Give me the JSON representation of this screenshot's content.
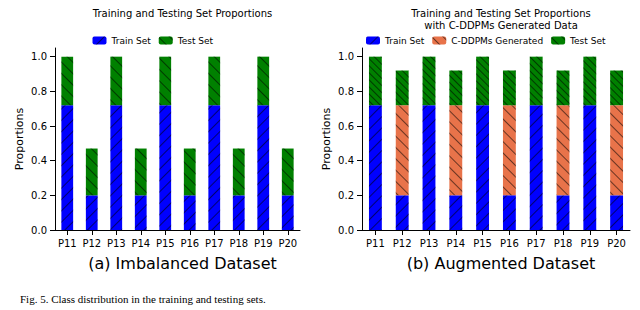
{
  "caption": "Fig. 5. Class distribution in the training and testing sets.",
  "chart_data": [
    {
      "type": "bar",
      "stacked": true,
      "grid": false,
      "legend": "top",
      "title": "Training and Testing Set Proportions",
      "subtitle": "(a) Imbalanced Dataset",
      "y_label": "Proportions",
      "categories": [
        "P11",
        "P12",
        "P13",
        "P14",
        "P15",
        "P16",
        "P17",
        "P18",
        "P19",
        "P20"
      ],
      "ylim": [
        0,
        1.05
      ],
      "yticks": [
        {
          "value": 0,
          "label": "0.0"
        },
        {
          "value": 0.2,
          "label": "0.2"
        },
        {
          "value": 0.4,
          "label": "0.4"
        },
        {
          "value": 0.6,
          "label": "0.6"
        },
        {
          "value": 0.8,
          "label": "0.8"
        },
        {
          "value": 1,
          "label": "1.0"
        }
      ],
      "series": [
        {
          "name": "Train Set",
          "color": "#0000ff",
          "values": [
            0.72,
            0.2,
            0.72,
            0.2,
            0.72,
            0.2,
            0.72,
            0.2,
            0.72,
            0.2
          ]
        },
        {
          "name": "Test Set",
          "color": "#008000",
          "values": [
            0.28,
            0.27,
            0.28,
            0.27,
            0.28,
            0.27,
            0.28,
            0.27,
            0.28,
            0.27
          ]
        }
      ]
    },
    {
      "type": "bar",
      "stacked": true,
      "grid": false,
      "legend": "top",
      "title": "Training and Testing Set Proportions\nwith C-DDPMs Generated Data",
      "subtitle": "(b) Augmented Dataset",
      "y_label": "Proportions",
      "categories": [
        "P11",
        "P12",
        "P13",
        "P14",
        "P15",
        "P16",
        "P17",
        "P18",
        "P19",
        "P20"
      ],
      "ylim": [
        0,
        1.05
      ],
      "yticks": [
        {
          "value": 0,
          "label": "0.0"
        },
        {
          "value": 0.2,
          "label": "0.2"
        },
        {
          "value": 0.4,
          "label": "0.4"
        },
        {
          "value": 0.6,
          "label": "0.6"
        },
        {
          "value": 0.8,
          "label": "0.8"
        },
        {
          "value": 1,
          "label": "1.0"
        }
      ],
      "series": [
        {
          "name": "Train Set",
          "color": "#0000ff",
          "values": [
            0.72,
            0.2,
            0.72,
            0.2,
            0.72,
            0.2,
            0.72,
            0.2,
            0.72,
            0.2
          ]
        },
        {
          "name": "C-DDPMs Generated",
          "color": "#e8734a",
          "values": [
            0,
            0.52,
            0,
            0.52,
            0,
            0.52,
            0,
            0.52,
            0,
            0.52
          ]
        },
        {
          "name": "Test Set",
          "color": "#008000",
          "values": [
            0.28,
            0.2,
            0.28,
            0.2,
            0.28,
            0.2,
            0.28,
            0.2,
            0.28,
            0.2
          ]
        }
      ]
    }
  ]
}
